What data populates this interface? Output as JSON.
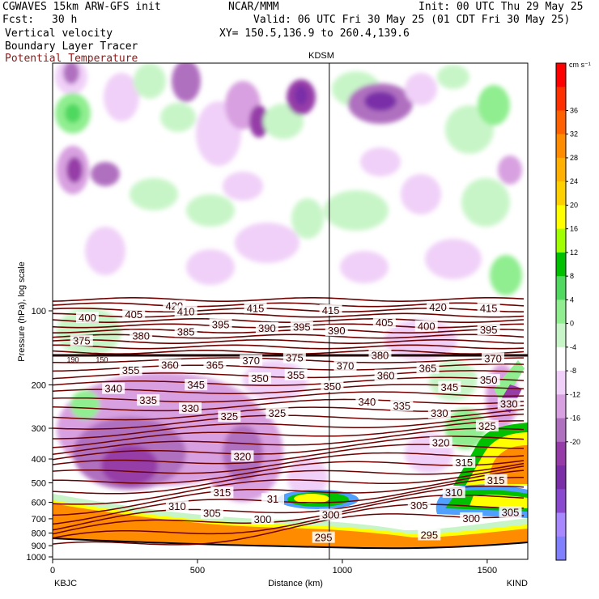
{
  "header": {
    "model": "CGWAVES 15km ARW-GFS init",
    "org": "NCAR/MMM",
    "init": "Init: 00 UTC Thu 29 May 25",
    "fcst_label": "Fcst:",
    "fcst_value": "30 h",
    "valid": "Valid: 06 UTC Fri 30 May 25 (01 CDT Fri 30 May 25)",
    "field1": "Vertical velocity",
    "field2": "Boundary Layer Tracer",
    "field3": "Potential Temperature",
    "xy": "XY= 150.5,136.9 to 260.4,139.6"
  },
  "colors": {
    "theta_line": "#6e0000",
    "terrain": "#ff8c00",
    "cb_colors": [
      "#8080ff",
      "#a888ff",
      "#8a4ad0",
      "#7a2fa8",
      "#963ca8",
      "#b070c0",
      "#d8a0e0",
      "#f0d0f8",
      "#ffffff",
      "#c8f5c8",
      "#90ee90",
      "#50d860",
      "#00c000",
      "#a0ff00",
      "#ffff00",
      "#ffd000",
      "#ffb000",
      "#ff8c00",
      "#ff6000",
      "#ff3000",
      "#ff0000"
    ]
  },
  "chart_data": {
    "type": "heatmap",
    "title": "",
    "xlabel": "Distance (km)",
    "ylabel": "Pressure (hPa), log scale",
    "x_ticks": [
      "0",
      "500",
      "1000",
      "1500"
    ],
    "y_ticks": [
      "100",
      "200",
      "300",
      "400",
      "500",
      "600",
      "700",
      "800",
      "900",
      "1000"
    ],
    "x_range": [
      0,
      1640
    ],
    "left_station": "KBJC",
    "right_station": "KIND",
    "mid_station": "KDSM",
    "mid_station_x_km": 955,
    "colorbar": {
      "unit": "cm s⁻¹",
      "ticks": [
        "36",
        "32",
        "28",
        "24",
        "20",
        "16",
        "12",
        "8",
        "4",
        "0",
        "-4",
        "-8",
        "-12",
        "-16",
        "-20"
      ]
    },
    "theta_labels": [
      {
        "text": "420",
        "x": 420,
        "p": 96
      },
      {
        "text": "415",
        "x": 700,
        "p": 98
      },
      {
        "text": "415",
        "x": 960,
        "p": 100
      },
      {
        "text": "420",
        "x": 1330,
        "p": 97
      },
      {
        "text": "415",
        "x": 1505,
        "p": 98
      },
      {
        "text": "410",
        "x": 460,
        "p": 101
      },
      {
        "text": "405",
        "x": 280,
        "p": 104
      },
      {
        "text": "400",
        "x": 120,
        "p": 107
      },
      {
        "text": "395",
        "x": 580,
        "p": 114
      },
      {
        "text": "390",
        "x": 740,
        "p": 118
      },
      {
        "text": "395",
        "x": 860,
        "p": 117
      },
      {
        "text": "390",
        "x": 980,
        "p": 121
      },
      {
        "text": "405",
        "x": 1145,
        "p": 112
      },
      {
        "text": "400",
        "x": 1290,
        "p": 116
      },
      {
        "text": "395",
        "x": 1505,
        "p": 120
      },
      {
        "text": "385",
        "x": 460,
        "p": 122
      },
      {
        "text": "380",
        "x": 305,
        "p": 127
      },
      {
        "text": "375",
        "x": 100,
        "p": 133
      },
      {
        "text": "370",
        "x": 685,
        "p": 160
      },
      {
        "text": "375",
        "x": 835,
        "p": 156
      },
      {
        "text": "380",
        "x": 1130,
        "p": 152
      },
      {
        "text": "370",
        "x": 1520,
        "p": 157
      },
      {
        "text": "360",
        "x": 405,
        "p": 167
      },
      {
        "text": "365",
        "x": 560,
        "p": 167
      },
      {
        "text": "355",
        "x": 270,
        "p": 175
      },
      {
        "text": "370",
        "x": 1010,
        "p": 168
      },
      {
        "text": "365",
        "x": 1295,
        "p": 172
      },
      {
        "text": "350",
        "x": 715,
        "p": 189
      },
      {
        "text": "355",
        "x": 840,
        "p": 183
      },
      {
        "text": "360",
        "x": 1150,
        "p": 184
      },
      {
        "text": "350",
        "x": 1505,
        "p": 192
      },
      {
        "text": "345",
        "x": 495,
        "p": 201
      },
      {
        "text": "350",
        "x": 965,
        "p": 204
      },
      {
        "text": "345",
        "x": 1370,
        "p": 205
      },
      {
        "text": "340",
        "x": 210,
        "p": 208
      },
      {
        "text": "340",
        "x": 1085,
        "p": 235
      },
      {
        "text": "335",
        "x": 1205,
        "p": 244
      },
      {
        "text": "335",
        "x": 330,
        "p": 232
      },
      {
        "text": "330",
        "x": 1575,
        "p": 240
      },
      {
        "text": "330",
        "x": 475,
        "p": 250
      },
      {
        "text": "330",
        "x": 1335,
        "p": 262
      },
      {
        "text": "325",
        "x": 610,
        "p": 270
      },
      {
        "text": "325",
        "x": 775,
        "p": 262
      },
      {
        "text": "325",
        "x": 1500,
        "p": 295
      },
      {
        "text": "320",
        "x": 655,
        "p": 392
      },
      {
        "text": "320",
        "x": 1340,
        "p": 345
      },
      {
        "text": "315",
        "x": 1420,
        "p": 415
      },
      {
        "text": "315",
        "x": 1530,
        "p": 490
      },
      {
        "text": "315",
        "x": 585,
        "p": 550
      },
      {
        "text": "310",
        "x": 1385,
        "p": 550
      },
      {
        "text": "31",
        "x": 760,
        "p": 585
      },
      {
        "text": "310",
        "x": 430,
        "p": 625
      },
      {
        "text": "305",
        "x": 550,
        "p": 668
      },
      {
        "text": "300",
        "x": 725,
        "p": 705
      },
      {
        "text": "300",
        "x": 960,
        "p": 678
      },
      {
        "text": "305",
        "x": 1265,
        "p": 620
      },
      {
        "text": "305",
        "x": 1580,
        "p": 662
      },
      {
        "text": "300",
        "x": 1445,
        "p": 700
      },
      {
        "text": "295",
        "x": 935,
        "p": 838
      },
      {
        "text": "295",
        "x": 1300,
        "p": 818
      }
    ],
    "tropopause_labels": [
      {
        "text": "190",
        "x": 70,
        "p": 158
      },
      {
        "text": "150",
        "x": 170,
        "p": 158
      }
    ]
  }
}
